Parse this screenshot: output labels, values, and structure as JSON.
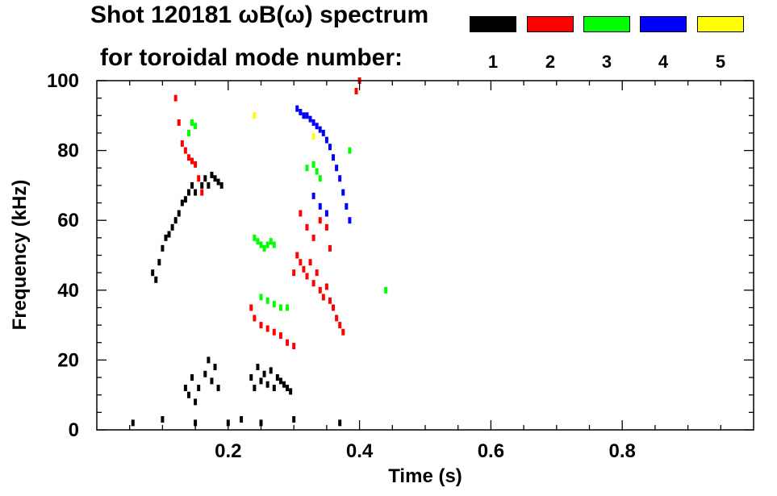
{
  "chart_data": {
    "type": "heatmap",
    "title": "Shot 120181 ωB(ω) spectrum",
    "subtitle": "for toroidal mode number:",
    "xlabel": "Time (s)",
    "ylabel": "Frequency (kHz)",
    "xlim": [
      0.0,
      1.0
    ],
    "ylim": [
      0,
      100
    ],
    "xticks": [
      0.2,
      0.4,
      0.6,
      0.8
    ],
    "xtick_labels": [
      "0.2",
      "0.4",
      "0.6",
      "0.8"
    ],
    "yticks": [
      0,
      20,
      40,
      60,
      80,
      100
    ],
    "ytick_labels": [
      "0",
      "20",
      "40",
      "60",
      "80",
      "100"
    ],
    "legend": [
      {
        "mode": "1",
        "color": "#000000"
      },
      {
        "mode": "2",
        "color": "#ff0000"
      },
      {
        "mode": "3",
        "color": "#00ff00"
      },
      {
        "mode": "4",
        "color": "#0000ff"
      },
      {
        "mode": "5",
        "color": "#ffff00"
      }
    ],
    "series": [
      {
        "name": "n=1",
        "color": "#000000",
        "points": [
          [
            0.085,
            45
          ],
          [
            0.09,
            43
          ],
          [
            0.095,
            48
          ],
          [
            0.1,
            52
          ],
          [
            0.105,
            55
          ],
          [
            0.11,
            56
          ],
          [
            0.115,
            58
          ],
          [
            0.12,
            60
          ],
          [
            0.125,
            62
          ],
          [
            0.13,
            65
          ],
          [
            0.135,
            66
          ],
          [
            0.14,
            68
          ],
          [
            0.145,
            70
          ],
          [
            0.15,
            68
          ],
          [
            0.16,
            70
          ],
          [
            0.165,
            72
          ],
          [
            0.17,
            70
          ],
          [
            0.175,
            73
          ],
          [
            0.18,
            72
          ],
          [
            0.185,
            71
          ],
          [
            0.19,
            70
          ],
          [
            0.135,
            12
          ],
          [
            0.14,
            10
          ],
          [
            0.145,
            15
          ],
          [
            0.15,
            8
          ],
          [
            0.155,
            12
          ],
          [
            0.165,
            16
          ],
          [
            0.17,
            20
          ],
          [
            0.175,
            14
          ],
          [
            0.18,
            18
          ],
          [
            0.185,
            12
          ],
          [
            0.235,
            15
          ],
          [
            0.24,
            12
          ],
          [
            0.245,
            18
          ],
          [
            0.25,
            14
          ],
          [
            0.255,
            16
          ],
          [
            0.26,
            13
          ],
          [
            0.265,
            17
          ],
          [
            0.27,
            12
          ],
          [
            0.275,
            15
          ],
          [
            0.28,
            14
          ],
          [
            0.285,
            13
          ],
          [
            0.29,
            12
          ],
          [
            0.295,
            11
          ],
          [
            0.055,
            2
          ],
          [
            0.1,
            3
          ],
          [
            0.15,
            2
          ],
          [
            0.2,
            2
          ],
          [
            0.22,
            3
          ],
          [
            0.25,
            2
          ],
          [
            0.3,
            3
          ],
          [
            0.37,
            2
          ]
        ]
      },
      {
        "name": "n=2",
        "color": "#ff0000",
        "points": [
          [
            0.12,
            95
          ],
          [
            0.125,
            88
          ],
          [
            0.13,
            82
          ],
          [
            0.135,
            80
          ],
          [
            0.14,
            78
          ],
          [
            0.145,
            77
          ],
          [
            0.15,
            76
          ],
          [
            0.155,
            72
          ],
          [
            0.16,
            68
          ],
          [
            0.235,
            35
          ],
          [
            0.24,
            32
          ],
          [
            0.25,
            30
          ],
          [
            0.26,
            29
          ],
          [
            0.27,
            28
          ],
          [
            0.28,
            27
          ],
          [
            0.29,
            25
          ],
          [
            0.3,
            24
          ],
          [
            0.3,
            45
          ],
          [
            0.305,
            50
          ],
          [
            0.31,
            48
          ],
          [
            0.315,
            46
          ],
          [
            0.32,
            44
          ],
          [
            0.325,
            48
          ],
          [
            0.33,
            42
          ],
          [
            0.335,
            45
          ],
          [
            0.34,
            40
          ],
          [
            0.345,
            38
          ],
          [
            0.35,
            41
          ],
          [
            0.355,
            37
          ],
          [
            0.36,
            35
          ],
          [
            0.365,
            32
          ],
          [
            0.37,
            30
          ],
          [
            0.375,
            28
          ],
          [
            0.31,
            62
          ],
          [
            0.32,
            58
          ],
          [
            0.33,
            55
          ],
          [
            0.34,
            60
          ],
          [
            0.35,
            58
          ],
          [
            0.355,
            52
          ],
          [
            0.395,
            97
          ],
          [
            0.4,
            100
          ]
        ]
      },
      {
        "name": "n=3",
        "color": "#00ff00",
        "points": [
          [
            0.14,
            85
          ],
          [
            0.145,
            88
          ],
          [
            0.15,
            87
          ],
          [
            0.24,
            55
          ],
          [
            0.245,
            54
          ],
          [
            0.25,
            53
          ],
          [
            0.255,
            52
          ],
          [
            0.26,
            53
          ],
          [
            0.265,
            54
          ],
          [
            0.27,
            53
          ],
          [
            0.25,
            38
          ],
          [
            0.26,
            37
          ],
          [
            0.27,
            36
          ],
          [
            0.28,
            35
          ],
          [
            0.29,
            35
          ],
          [
            0.32,
            75
          ],
          [
            0.33,
            76
          ],
          [
            0.335,
            74
          ],
          [
            0.34,
            72
          ],
          [
            0.385,
            80
          ],
          [
            0.44,
            40
          ]
        ]
      },
      {
        "name": "n=4",
        "color": "#0000ff",
        "points": [
          [
            0.305,
            92
          ],
          [
            0.31,
            91
          ],
          [
            0.315,
            90
          ],
          [
            0.32,
            90
          ],
          [
            0.325,
            89
          ],
          [
            0.33,
            88
          ],
          [
            0.335,
            87
          ],
          [
            0.34,
            86
          ],
          [
            0.345,
            85
          ],
          [
            0.35,
            83
          ],
          [
            0.355,
            81
          ],
          [
            0.36,
            78
          ],
          [
            0.365,
            75
          ],
          [
            0.37,
            72
          ],
          [
            0.375,
            68
          ],
          [
            0.38,
            64
          ],
          [
            0.385,
            60
          ],
          [
            0.33,
            67
          ],
          [
            0.34,
            64
          ],
          [
            0.35,
            62
          ]
        ]
      },
      {
        "name": "n=5",
        "color": "#ffff00",
        "points": [
          [
            0.24,
            90
          ],
          [
            0.33,
            84
          ]
        ]
      }
    ]
  }
}
